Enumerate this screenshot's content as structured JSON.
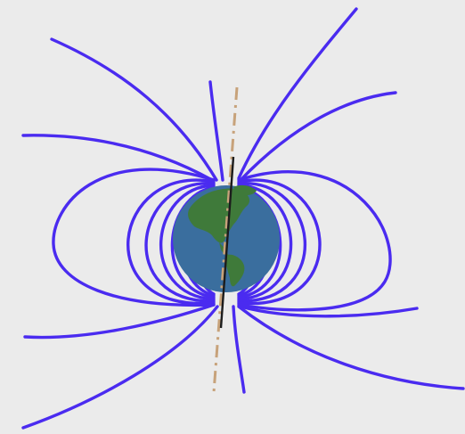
{
  "diagram": {
    "subject": "magnetic-field-of-earth",
    "colors": {
      "background": "#ebebeb",
      "field_lines": "#4a2bf0",
      "ocean": "#3a6e9e",
      "land": "#3f7a3a",
      "geographic_axis": "#c7a27a",
      "magnetic_axis": "#1c1c1c"
    },
    "icons": {
      "globe": "earth-globe-icon"
    }
  }
}
